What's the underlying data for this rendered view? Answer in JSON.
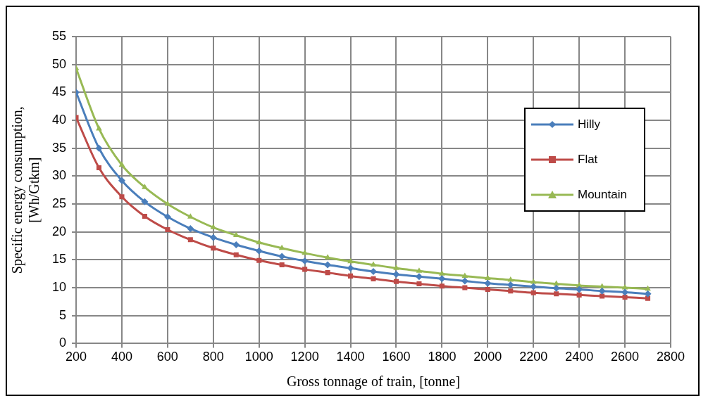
{
  "chart_data": {
    "type": "line",
    "xlabel": "Gross tonnage of train, [tonne]",
    "ylabel": "Specific energy consumption, [Wh/Gtkm]",
    "x": [
      200,
      300,
      400,
      500,
      600,
      700,
      800,
      900,
      1000,
      1100,
      1200,
      1300,
      1400,
      1500,
      1600,
      1700,
      1800,
      1900,
      2000,
      2100,
      2200,
      2300,
      2400,
      2500,
      2600,
      2700
    ],
    "series": [
      {
        "name": "Hilly",
        "color": "#4a7ebb",
        "marker": "diamond",
        "values": [
          45,
          35,
          29.2,
          25.4,
          22.7,
          20.6,
          19,
          17.7,
          16.6,
          15.6,
          14.8,
          14.1,
          13.5,
          12.9,
          12.4,
          12,
          11.6,
          11.2,
          10.8,
          10.5,
          10.2,
          9.9,
          9.7,
          9.4,
          9.2,
          8.9
        ]
      },
      {
        "name": "Flat",
        "color": "#be4b48",
        "marker": "square",
        "values": [
          40.5,
          31.5,
          26.3,
          22.8,
          20.4,
          18.6,
          17.1,
          15.9,
          14.9,
          14.1,
          13.3,
          12.7,
          12.1,
          11.6,
          11.1,
          10.7,
          10.3,
          10,
          9.7,
          9.4,
          9.1,
          8.9,
          8.7,
          8.5,
          8.3,
          8.1
        ]
      },
      {
        "name": "Mountain",
        "color": "#98b954",
        "marker": "triangle",
        "values": [
          49.3,
          38.5,
          32,
          28,
          25,
          22.7,
          20.8,
          19.4,
          18.1,
          17.1,
          16.2,
          15.4,
          14.7,
          14.1,
          13.5,
          13,
          12.5,
          12.1,
          11.7,
          11.4,
          11,
          10.7,
          10.4,
          10.2,
          10,
          9.8
        ]
      }
    ],
    "xlim": [
      200,
      2800
    ],
    "xticks": [
      200,
      400,
      600,
      800,
      1000,
      1200,
      1400,
      1600,
      1800,
      2000,
      2200,
      2400,
      2600,
      2800
    ],
    "ylim": [
      0,
      55
    ],
    "yticks": [
      0,
      5,
      10,
      15,
      20,
      25,
      30,
      35,
      40,
      45,
      50,
      55
    ],
    "grid": true,
    "legend": "right",
    "line_style": "solid"
  }
}
